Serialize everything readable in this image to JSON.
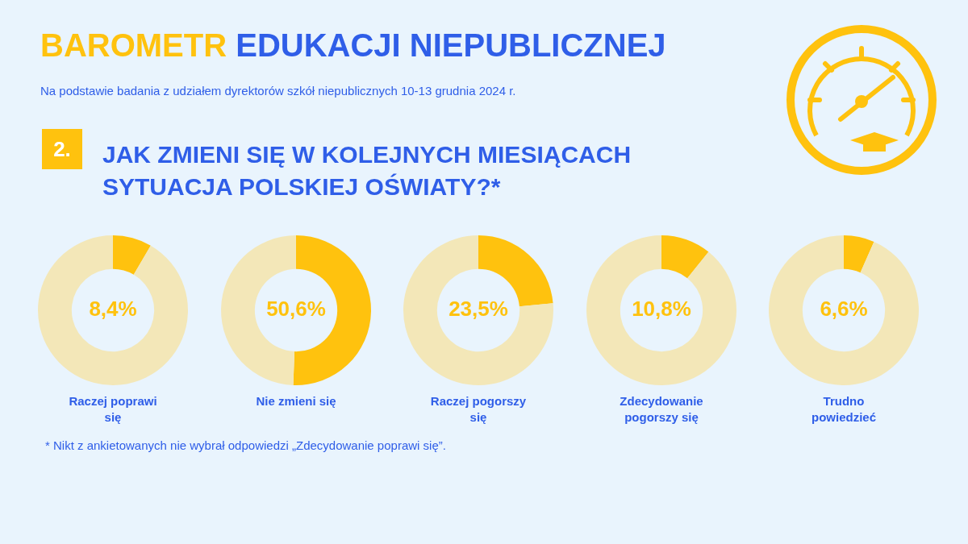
{
  "chart_data": [
    {
      "type": "donut",
      "title": "BAROMETR EDUKACJI NIEPUBLICZNEJ",
      "subtitle": "Na podstawie badania z udziałem dyrektorów szkół niepublicznych 10-13 grudnia 2024 r.",
      "annotations": [
        "2.",
        "JAK ZMIENI SIĘ W KOLEJNYCH MIESIĄCACH SYTUACJA POLSKIEJ OŚWIATY?*",
        "* Nikt z ankietowanych nie wybrał odpowiedzi „Zdecydowanie poprawi się”."
      ],
      "xlabel": "Raczej poprawi się",
      "categories": [
        null,
        null
      ],
      "values": [
        8.4,
        91.6
      ],
      "colors": [
        "#ffc20e",
        "#f3e7b8"
      ],
      "value_labels": [
        "8,4%",
        null
      ]
    },
    {
      "type": "donut",
      "xlabel": "Nie zmieni się",
      "categories": [
        null,
        null
      ],
      "values": [
        50.6,
        49.4
      ],
      "colors": [
        "#ffc20e",
        "#f3e7b8"
      ],
      "value_labels": [
        "50,6%",
        null
      ]
    },
    {
      "type": "donut",
      "xlabel": "Raczej pogorszy się",
      "categories": [
        null,
        null
      ],
      "values": [
        23.5,
        76.5
      ],
      "colors": [
        "#ffc20e",
        "#f3e7b8"
      ],
      "value_labels": [
        "23,5%",
        null
      ]
    },
    {
      "type": "donut",
      "xlabel": "Zdecydowanie pogorszy się",
      "categories": [
        null,
        null
      ],
      "values": [
        10.8,
        89.2
      ],
      "colors": [
        "#ffc20e",
        "#f3e7b8"
      ],
      "value_labels": [
        "10,8%",
        null
      ]
    },
    {
      "type": "donut",
      "xlabel": "Trudno powiedzieć",
      "categories": [
        null,
        null
      ],
      "values": [
        6.6,
        93.4
      ],
      "colors": [
        "#ffc20e",
        "#f3e7b8"
      ],
      "value_labels": [
        "6,6%",
        null
      ]
    }
  ]
}
